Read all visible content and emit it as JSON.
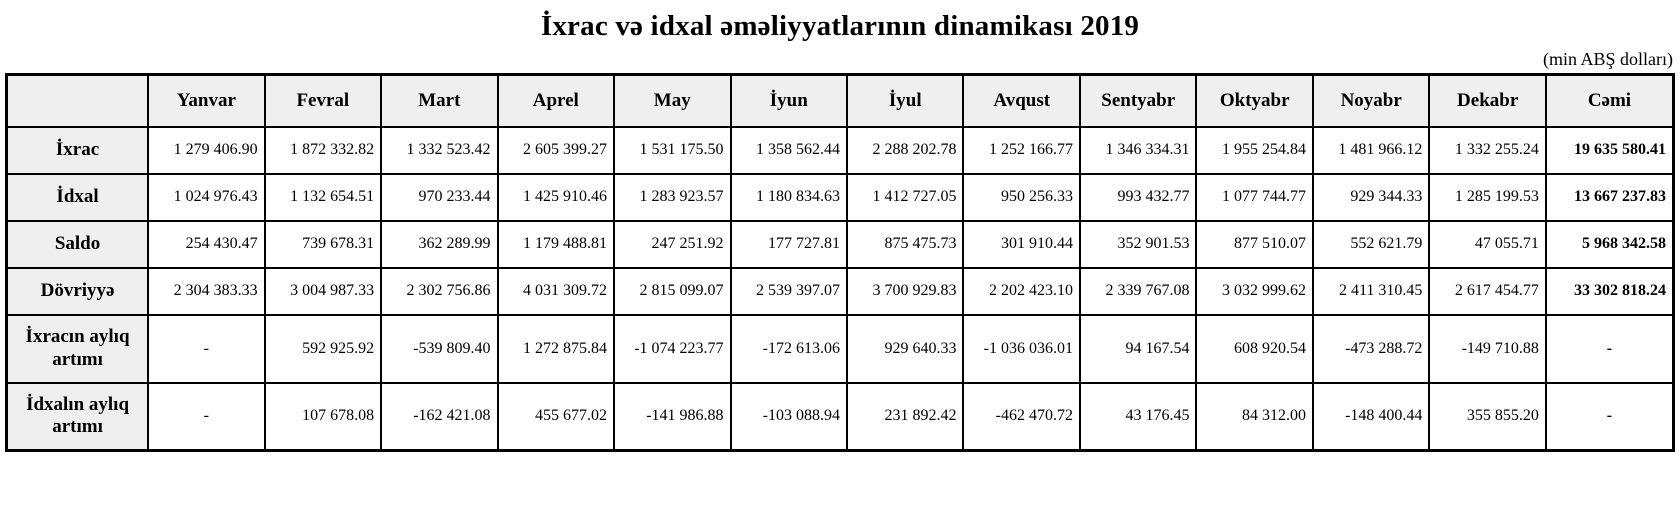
{
  "title": "İxrac və idxal əməliyyatlarının dinamikası 2019",
  "unit_note": "(min ABŞ dolları)",
  "table": {
    "columns": [
      "",
      "Yanvar",
      "Fevral",
      "Mart",
      "Aprel",
      "May",
      "İyun",
      "İyul",
      "Avqust",
      "Sentyabr",
      "Oktyabr",
      "Noyabr",
      "Dekabr",
      "Cəmi"
    ],
    "rows": [
      {
        "label": "İxrac",
        "values": [
          "1 279 406.90",
          "1 872 332.82",
          "1 332 523.42",
          "2 605 399.27",
          "1 531 175.50",
          "1 358 562.44",
          "2 288 202.78",
          "1 252 166.77",
          "1 346 334.31",
          "1 955 254.84",
          "1 481 966.12",
          "1 332 255.24",
          "19 635 580.41"
        ]
      },
      {
        "label": "İdxal",
        "values": [
          "1 024 976.43",
          "1 132 654.51",
          "970 233.44",
          "1 425 910.46",
          "1 283 923.57",
          "1 180 834.63",
          "1 412 727.05",
          "950 256.33",
          "993 432.77",
          "1 077 744.77",
          "929 344.33",
          "1 285 199.53",
          "13 667 237.83"
        ]
      },
      {
        "label": "Saldo",
        "values": [
          "254 430.47",
          "739 678.31",
          "362 289.99",
          "1 179 488.81",
          "247 251.92",
          "177 727.81",
          "875 475.73",
          "301 910.44",
          "352 901.53",
          "877 510.07",
          "552 621.79",
          "47 055.71",
          "5 968 342.58"
        ]
      },
      {
        "label": "Dövriyyə",
        "values": [
          "2 304 383.33",
          "3 004 987.33",
          "2 302 756.86",
          "4 031 309.72",
          "2 815 099.07",
          "2 539 397.07",
          "3 700 929.83",
          "2 202 423.10",
          "2 339 767.08",
          "3 032 999.62",
          "2 411 310.45",
          "2 617 454.77",
          "33 302 818.24"
        ]
      },
      {
        "label": "İxracın aylıq artımı",
        "tall": true,
        "values": [
          "-",
          "592 925.92",
          "-539 809.40",
          "1 272 875.84",
          "-1 074 223.77",
          "-172 613.06",
          "929 640.33",
          "-1 036 036.01",
          "94 167.54",
          "608 920.54",
          "-473 288.72",
          "-149 710.88",
          "-"
        ]
      },
      {
        "label": "İdxalın aylıq artımı",
        "tall": true,
        "values": [
          "-",
          "107 678.08",
          "-162 421.08",
          "455 677.02",
          "-141 986.88",
          "-103 088.94",
          "231 892.42",
          "-462 470.72",
          "43 176.45",
          "84 312.00",
          "-148 400.44",
          "355 855.20",
          "-"
        ]
      }
    ]
  }
}
